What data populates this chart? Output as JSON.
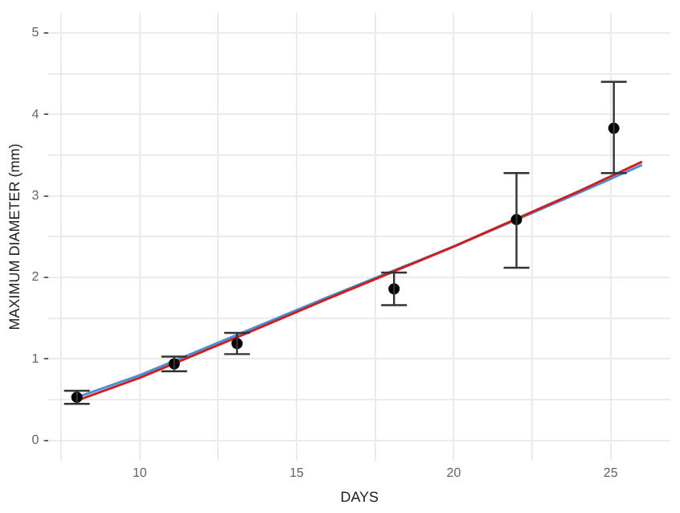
{
  "chart_data": {
    "type": "scatter",
    "xlabel": "DAYS",
    "ylabel": "MAXIMUM DIAMETER (mm)",
    "xlim": [
      7.1,
      26.9
    ],
    "ylim": [
      -0.25,
      5.25
    ],
    "xticks": [
      {
        "value": 7.5,
        "label": null
      },
      10,
      {
        "value": 12.5,
        "label": null
      },
      15,
      {
        "value": 17.5,
        "label": null
      },
      20,
      {
        "value": 22.5,
        "label": null
      },
      25
    ],
    "yticks": [
      0,
      {
        "value": 0.5,
        "label": null
      },
      1,
      {
        "value": 1.5,
        "label": null
      },
      2,
      {
        "value": 2.5,
        "label": null
      },
      3,
      {
        "value": 3.5,
        "label": null
      },
      4,
      {
        "value": 4.5,
        "label": null
      },
      5
    ],
    "grid": true,
    "legend": false,
    "marker": "circle",
    "series": [
      {
        "type": "line",
        "color": "#4a90d9",
        "marker": "none",
        "x": [
          8,
          10,
          13,
          16,
          18,
          20,
          22,
          24,
          26
        ],
        "values": [
          0.53,
          0.8,
          1.28,
          1.76,
          2.07,
          2.38,
          2.71,
          3.04,
          3.38
        ]
      },
      {
        "type": "line",
        "color": "#cc1f1f",
        "marker": "none",
        "x": [
          8,
          10,
          13,
          16,
          18,
          20,
          22,
          24,
          26
        ],
        "values": [
          0.49,
          0.77,
          1.25,
          1.74,
          2.06,
          2.38,
          2.72,
          3.06,
          3.42
        ]
      },
      {
        "type": "scatter",
        "color": "#000000",
        "x": [
          8,
          11.1,
          13.1,
          18.1,
          22,
          25.1
        ],
        "values": [
          0.53,
          0.94,
          1.19,
          1.86,
          2.71,
          3.83
        ],
        "errors": [
          [
            0.45,
            0.61
          ],
          [
            0.85,
            1.03
          ],
          [
            1.06,
            1.32
          ],
          [
            1.66,
            2.06
          ],
          [
            2.12,
            3.28
          ],
          [
            3.28,
            4.4
          ]
        ]
      }
    ]
  }
}
